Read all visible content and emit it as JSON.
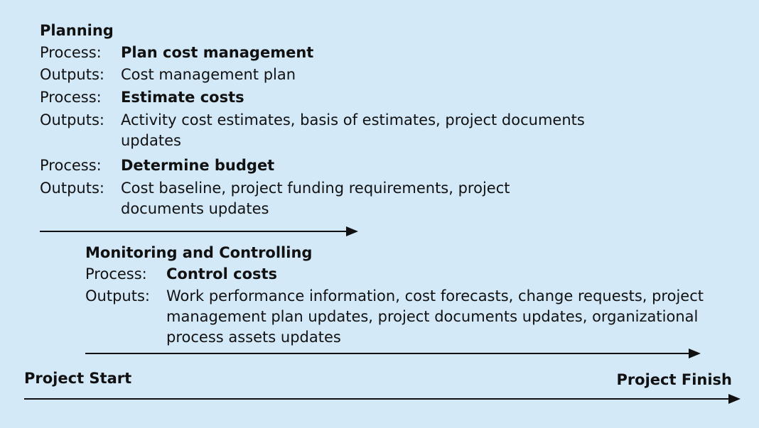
{
  "planning": {
    "title": "Planning",
    "items": [
      {
        "label": "Process:",
        "value": "Plan cost management"
      },
      {
        "label": "Outputs:",
        "value": "Cost management plan"
      },
      {
        "label": "Process:",
        "value": "Estimate costs"
      },
      {
        "label": "Outputs:",
        "value": "Activity cost estimates, basis of estimates, project documents updates"
      },
      {
        "label": "Process:",
        "value": "Determine budget"
      },
      {
        "label": "Outputs:",
        "value": "Cost baseline, project funding requirements, project documents updates"
      }
    ]
  },
  "monitoring": {
    "title": "Monitoring and Controlling",
    "items": [
      {
        "label": "Process:",
        "value": "Control costs"
      },
      {
        "label": "Outputs:",
        "value": "Work performance information, cost forecasts, change requests, project management plan updates, project documents updates, organizational process assets updates"
      }
    ]
  },
  "timeline": {
    "start": "Project Start",
    "finish": "Project Finish"
  }
}
